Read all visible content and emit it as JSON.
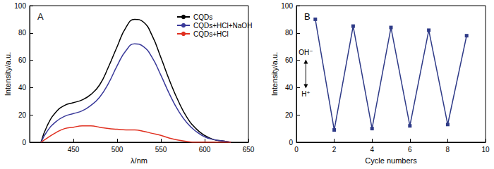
{
  "chart_data": [
    {
      "type": "line",
      "title": "A",
      "xlabel": "λ/nm",
      "ylabel": "Intensity/a.u.",
      "x": [
        413,
        420,
        430,
        440,
        450,
        460,
        470,
        480,
        490,
        500,
        510,
        520,
        530,
        540,
        550,
        560,
        570,
        580,
        590,
        600,
        610,
        620,
        630
      ],
      "series": [
        {
          "name": "CQDs",
          "color": "#000000",
          "line_style": "solid",
          "values": [
            0,
            12,
            22,
            27,
            29,
            31,
            35,
            42,
            55,
            70,
            84,
            90,
            88,
            78,
            62,
            45,
            30,
            18,
            10,
            5,
            2,
            1,
            0
          ]
        },
        {
          "name": "CQDs+HCl+NaOH",
          "color": "#3a3a9a",
          "line_style": "solid",
          "values": [
            0,
            8,
            15,
            19,
            21,
            23,
            27,
            33,
            43,
            56,
            67,
            72,
            70,
            62,
            49,
            35,
            23,
            14,
            8,
            4,
            2,
            1,
            0
          ]
        },
        {
          "name": "CQDs+HCl",
          "color": "#e03020",
          "line_style": "solid",
          "values": [
            0,
            3,
            7,
            10,
            11,
            12,
            12,
            11,
            10,
            9.5,
            9,
            9,
            8,
            6.5,
            5,
            3,
            1.5,
            0.5,
            0,
            0,
            0,
            0,
            0
          ]
        }
      ],
      "xlim": [
        400,
        650
      ],
      "xticks": [
        450,
        500,
        550,
        600,
        650
      ],
      "ylim": [
        0,
        100
      ],
      "yticks": [
        0,
        20,
        40,
        60,
        80,
        100
      ],
      "grid": false,
      "legend": "top"
    },
    {
      "type": "line",
      "title": "B",
      "xlabel": "Cycle numbers",
      "ylabel": "Intensity/a.u.",
      "x": [
        1,
        2,
        3,
        4,
        5,
        6,
        7,
        8,
        9
      ],
      "series": [
        {
          "color": "#2e3a87",
          "marker": "square",
          "line_style": "solid",
          "values": [
            90,
            9,
            85,
            10,
            84,
            12,
            82,
            13,
            78
          ]
        }
      ],
      "xlim": [
        0,
        10
      ],
      "xticks": [
        0,
        2,
        4,
        6,
        8,
        10
      ],
      "ylim": [
        0,
        100
      ],
      "yticks": [
        0,
        20,
        40,
        60,
        80,
        100
      ],
      "grid": false,
      "annotations": [
        "OH⁻",
        "H⁺"
      ]
    }
  ]
}
